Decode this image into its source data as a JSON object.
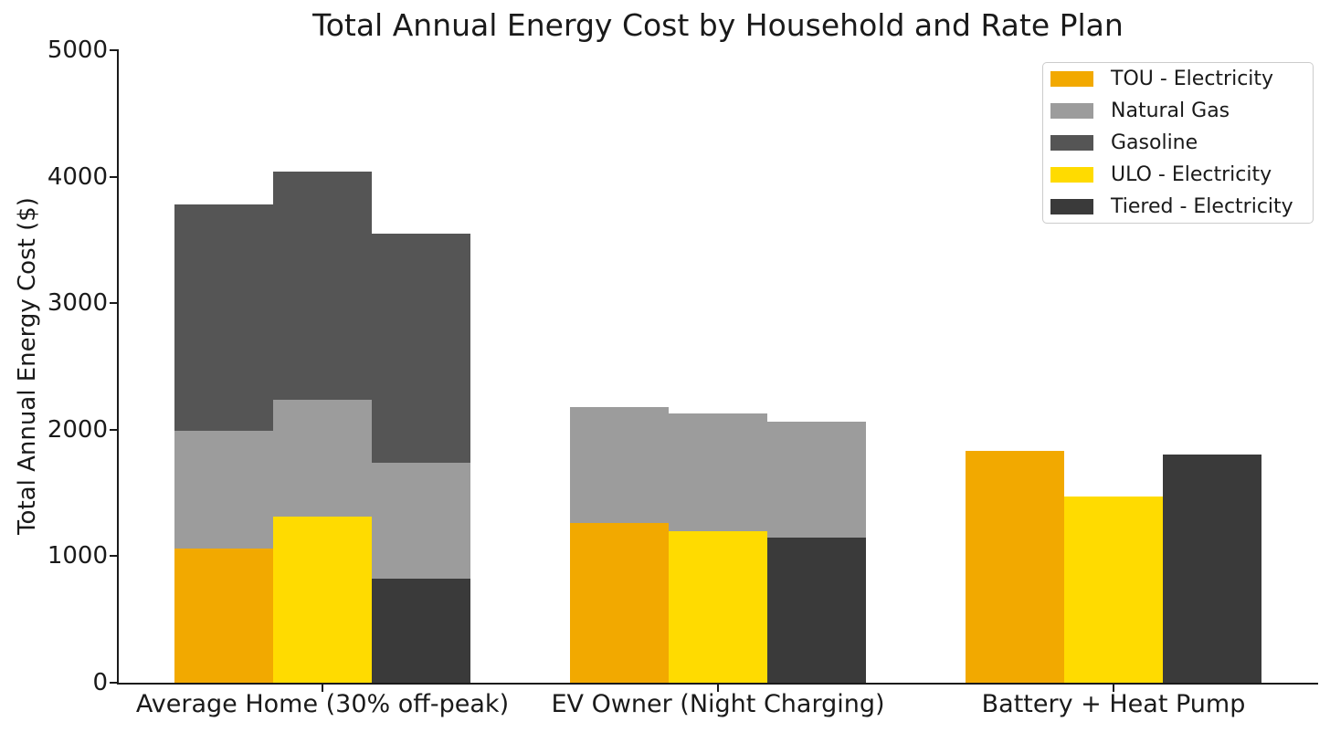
{
  "chart_data": {
    "type": "bar",
    "stacked": true,
    "title": "Total Annual Energy Cost by Household and Rate Plan",
    "ylabel": "Total Annual Energy Cost ($)",
    "xlabel": "",
    "ylim": [
      0,
      5000
    ],
    "yticks": [
      0,
      1000,
      2000,
      3000,
      4000,
      5000
    ],
    "grid": false,
    "legend_position": "upper-right",
    "legend": [
      {
        "label": "TOU - Electricity",
        "color_key": "tou"
      },
      {
        "label": "Natural Gas",
        "color_key": "natural_gas"
      },
      {
        "label": "Gasoline",
        "color_key": "gasoline"
      },
      {
        "label": "ULO - Electricity",
        "color_key": "ulo"
      },
      {
        "label": "Tiered - Electricity",
        "color_key": "tiered"
      }
    ],
    "colors": {
      "tou": "#F2A900",
      "ulo": "#FFDB00",
      "tiered": "#3A3A3A",
      "natural_gas": "#9C9C9C",
      "gasoline": "#555555"
    },
    "segment_order": [
      "electricity",
      "natural_gas",
      "gasoline"
    ],
    "categories": [
      "Average Home (30% off-peak)",
      "EV Owner (Night Charging)",
      "Battery + Heat Pump"
    ],
    "plans": [
      "TOU",
      "ULO",
      "Tiered"
    ],
    "groups": [
      {
        "category": "Average Home (30% off-peak)",
        "bars": [
          {
            "plan": "TOU",
            "electricity": 1060,
            "natural_gas": 930,
            "gasoline": 1790,
            "total": 3780
          },
          {
            "plan": "ULO",
            "electricity": 1310,
            "natural_gas": 930,
            "gasoline": 1800,
            "total": 4040
          },
          {
            "plan": "Tiered",
            "electricity": 820,
            "natural_gas": 920,
            "gasoline": 1810,
            "total": 3550
          }
        ]
      },
      {
        "category": "EV Owner (Night Charging)",
        "bars": [
          {
            "plan": "TOU",
            "electricity": 1260,
            "natural_gas": 920,
            "gasoline": 0,
            "total": 2180
          },
          {
            "plan": "ULO",
            "electricity": 1200,
            "natural_gas": 930,
            "gasoline": 0,
            "total": 2130
          },
          {
            "plan": "Tiered",
            "electricity": 1145,
            "natural_gas": 920,
            "gasoline": 0,
            "total": 2065
          }
        ]
      },
      {
        "category": "Battery + Heat Pump",
        "bars": [
          {
            "plan": "TOU",
            "electricity": 1830,
            "natural_gas": 0,
            "gasoline": 0,
            "total": 1830
          },
          {
            "plan": "ULO",
            "electricity": 1475,
            "natural_gas": 0,
            "gasoline": 0,
            "total": 1475
          },
          {
            "plan": "Tiered",
            "electricity": 1805,
            "natural_gas": 0,
            "gasoline": 0,
            "total": 1805
          }
        ]
      }
    ]
  }
}
